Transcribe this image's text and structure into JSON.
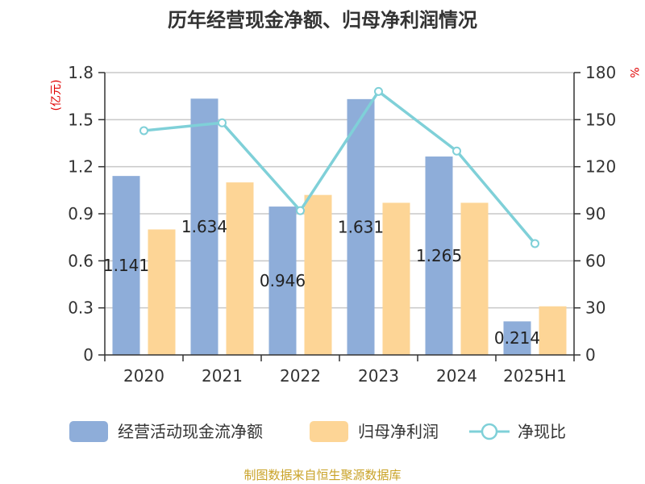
{
  "chart_data": {
    "type": "bar",
    "title": "历年经营现金净额、归母净利润情况",
    "categories": [
      "2020",
      "2021",
      "2022",
      "2023",
      "2024",
      "2025H1"
    ],
    "left_axis": {
      "label": "(亿元)",
      "ticks": [
        "0",
        "0.3",
        "0.6",
        "0.9",
        "1.2",
        "1.5",
        "1.8"
      ],
      "ylim": [
        0,
        1.8
      ]
    },
    "right_axis": {
      "label": "%",
      "ticks": [
        "0",
        "30",
        "60",
        "90",
        "120",
        "150",
        "180"
      ],
      "ylim": [
        0,
        180
      ]
    },
    "series": [
      {
        "name": "经营活动现金流净额",
        "type": "bar",
        "axis": "left",
        "color": "#8eadd9",
        "values": [
          1.141,
          1.634,
          0.946,
          1.631,
          1.265,
          0.214
        ],
        "labels": [
          "1.141",
          "1.634",
          "0.946",
          "1.631",
          "1.265",
          "0.214"
        ]
      },
      {
        "name": "归母净利润",
        "type": "bar",
        "axis": "left",
        "color": "#fdd596",
        "values": [
          0.8,
          1.1,
          1.02,
          0.97,
          0.97,
          0.31
        ]
      },
      {
        "name": "净现比",
        "type": "line",
        "axis": "right",
        "color": "#7fd0d8",
        "values": [
          143,
          148,
          92,
          168,
          130,
          71
        ]
      }
    ],
    "grid": true,
    "legend": "bottom"
  },
  "source_note": "制图数据来自恒生聚源数据库"
}
